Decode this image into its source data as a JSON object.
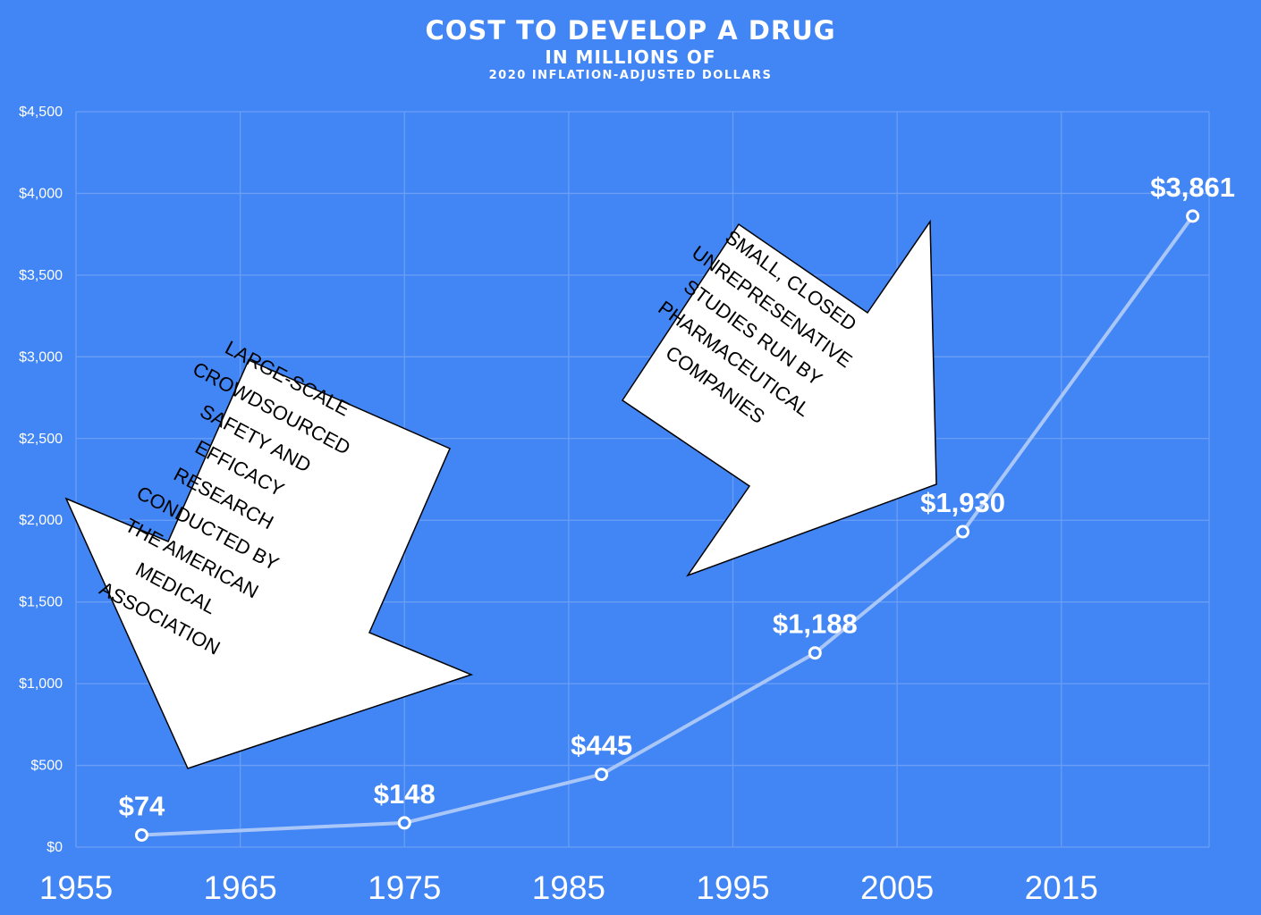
{
  "chart_data": {
    "type": "line",
    "title": "COST TO DEVELOP A DRUG",
    "subtitle": "IN MILLIONS OF",
    "subtitle2": "2020 INFLATION-ADJUSTED DOLLARS",
    "xlabel": "",
    "ylabel": "",
    "xlim": [
      1955,
      2024
    ],
    "ylim": [
      0,
      4500
    ],
    "x_ticks": [
      1955,
      1965,
      1975,
      1985,
      1995,
      2005,
      2015
    ],
    "x_tick_labels": [
      "1955",
      "1965",
      "1975",
      "1985",
      "1995",
      "2005",
      "2015"
    ],
    "y_ticks": [
      0,
      500,
      1000,
      1500,
      2000,
      2500,
      3000,
      3500,
      4000,
      4500
    ],
    "y_tick_labels": [
      "$0",
      "$500",
      "$1,000",
      "$1,500",
      "$2,000",
      "$2,500",
      "$3,000",
      "$3,500",
      "$4,000",
      "$4,500"
    ],
    "grid": true,
    "series": [
      {
        "x": [
          1959.0,
          1975.0,
          1987.0,
          2000.0,
          2009.0,
          2023.0
        ],
        "values": [
          74,
          148,
          445,
          1188,
          1930,
          3861
        ],
        "labels": [
          "$74",
          "$148",
          "$445",
          "$1,188",
          "$1,930",
          "$3,861"
        ]
      }
    ],
    "annotations": [
      {
        "name": "left-arrow",
        "direction": "down-left",
        "lines": [
          "LARGE-SCALE",
          "CROWDSOURCED",
          "SAFETY AND",
          "EFFICACY",
          "RESEARCH",
          "CONDUCTED BY",
          "THE AMERICAN",
          "MEDICAL",
          "ASSOCIATION"
        ]
      },
      {
        "name": "right-arrow",
        "direction": "up-right",
        "lines": [
          "SMALL, CLOSED",
          "UNREPRESENATIVE",
          "STUDIES RUN BY",
          "PHARMACEUTICAL",
          "COMPANIES"
        ]
      }
    ],
    "colors": {
      "background": "#4285f4",
      "line": "#a9c6f8",
      "grid": "#6b9ff6",
      "text": "#ffffff",
      "arrow_fill": "#ffffff",
      "arrow_stroke": "#000000",
      "arrow_text": "#000000"
    }
  }
}
